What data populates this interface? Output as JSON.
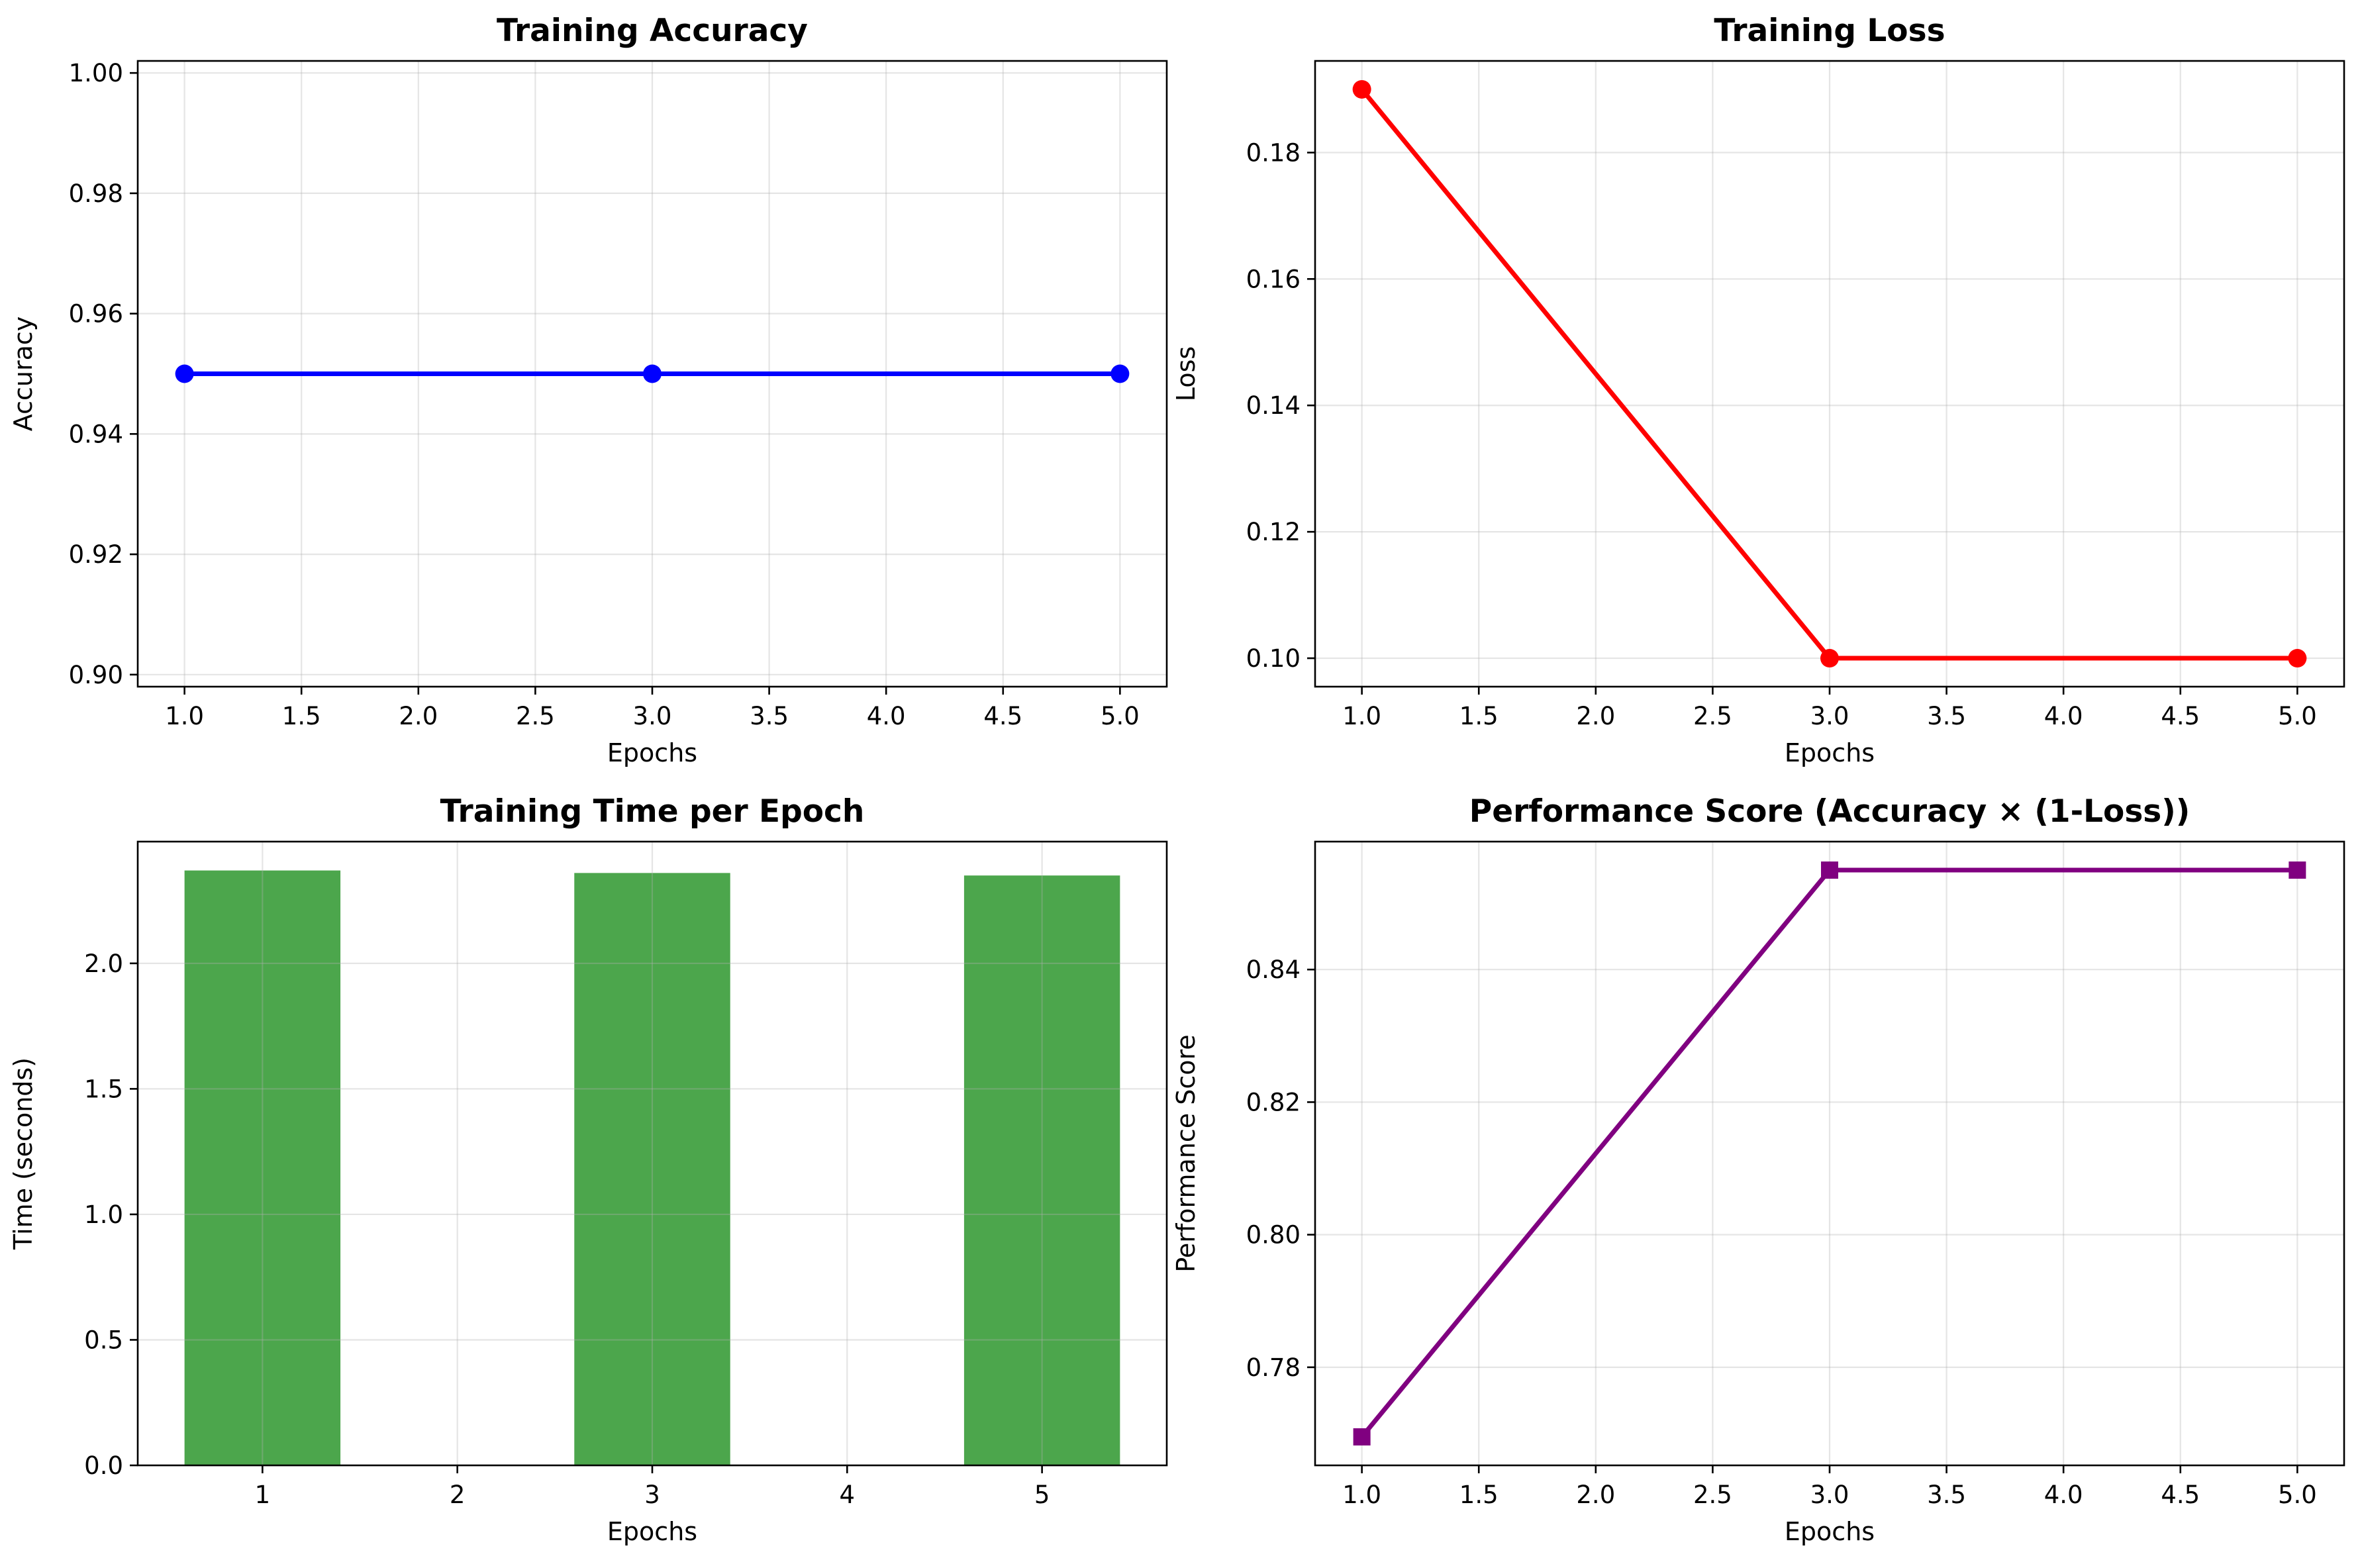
{
  "chart_data": [
    {
      "type": "line",
      "title": "Training Accuracy",
      "xlabel": "Epochs",
      "ylabel": "Accuracy",
      "x": [
        1,
        3,
        5
      ],
      "series": [
        {
          "values": [
            0.95,
            0.95,
            0.95
          ]
        }
      ],
      "xlim": [
        0.8,
        5.2
      ],
      "ylim": [
        0.898,
        1.002
      ],
      "xticks": [
        1.0,
        1.5,
        2.0,
        2.5,
        3.0,
        3.5,
        4.0,
        4.5,
        5.0
      ],
      "yticks": [
        0.9,
        0.92,
        0.94,
        0.96,
        0.98,
        1.0
      ],
      "xtick_labels": [
        "1.0",
        "1.5",
        "2.0",
        "2.5",
        "3.0",
        "3.5",
        "4.0",
        "4.5",
        "5.0"
      ],
      "ytick_labels": [
        "0.90",
        "0.92",
        "0.94",
        "0.96",
        "0.98",
        "1.00"
      ],
      "color": "#0000ff",
      "marker": "circle",
      "grid": true
    },
    {
      "type": "line",
      "title": "Training Loss",
      "xlabel": "Epochs",
      "ylabel": "Loss",
      "x": [
        1,
        3,
        5
      ],
      "series": [
        {
          "values": [
            0.19,
            0.1,
            0.1
          ]
        }
      ],
      "xlim": [
        0.8,
        5.2
      ],
      "ylim": [
        0.0955,
        0.1945
      ],
      "xticks": [
        1.0,
        1.5,
        2.0,
        2.5,
        3.0,
        3.5,
        4.0,
        4.5,
        5.0
      ],
      "yticks": [
        0.1,
        0.12,
        0.14,
        0.16,
        0.18
      ],
      "xtick_labels": [
        "1.0",
        "1.5",
        "2.0",
        "2.5",
        "3.0",
        "3.5",
        "4.0",
        "4.5",
        "5.0"
      ],
      "ytick_labels": [
        "0.10",
        "0.12",
        "0.14",
        "0.16",
        "0.18"
      ],
      "color": "#ff0000",
      "marker": "circle",
      "grid": true
    },
    {
      "type": "bar",
      "title": "Training Time per Epoch",
      "xlabel": "Epochs",
      "ylabel": "Time (seconds)",
      "x": [
        1,
        3,
        5
      ],
      "series": [
        {
          "values": [
            2.37,
            2.36,
            2.35
          ]
        }
      ],
      "bar_width": 0.8,
      "xlim": [
        0.36,
        5.64
      ],
      "ylim": [
        0,
        2.485
      ],
      "xticks": [
        1,
        2,
        3,
        4,
        5
      ],
      "yticks": [
        0.0,
        0.5,
        1.0,
        1.5,
        2.0
      ],
      "xtick_labels": [
        "1",
        "2",
        "3",
        "4",
        "5"
      ],
      "ytick_labels": [
        "0.0",
        "0.5",
        "1.0",
        "1.5",
        "2.0"
      ],
      "color": "#4ca64c",
      "grid": true
    },
    {
      "type": "line",
      "title": "Performance Score (Accuracy × (1-Loss))",
      "xlabel": "Epochs",
      "ylabel": "Performance Score",
      "x": [
        1,
        3,
        5
      ],
      "series": [
        {
          "values": [
            0.7695,
            0.855,
            0.855
          ]
        }
      ],
      "xlim": [
        0.8,
        5.2
      ],
      "ylim": [
        0.7652,
        0.8593
      ],
      "xticks": [
        1.0,
        1.5,
        2.0,
        2.5,
        3.0,
        3.5,
        4.0,
        4.5,
        5.0
      ],
      "yticks": [
        0.78,
        0.8,
        0.82,
        0.84
      ],
      "xtick_labels": [
        "1.0",
        "1.5",
        "2.0",
        "2.5",
        "3.0",
        "3.5",
        "4.0",
        "4.5",
        "5.0"
      ],
      "ytick_labels": [
        "0.78",
        "0.80",
        "0.82",
        "0.84"
      ],
      "color": "#800080",
      "marker": "square",
      "grid": true
    }
  ]
}
